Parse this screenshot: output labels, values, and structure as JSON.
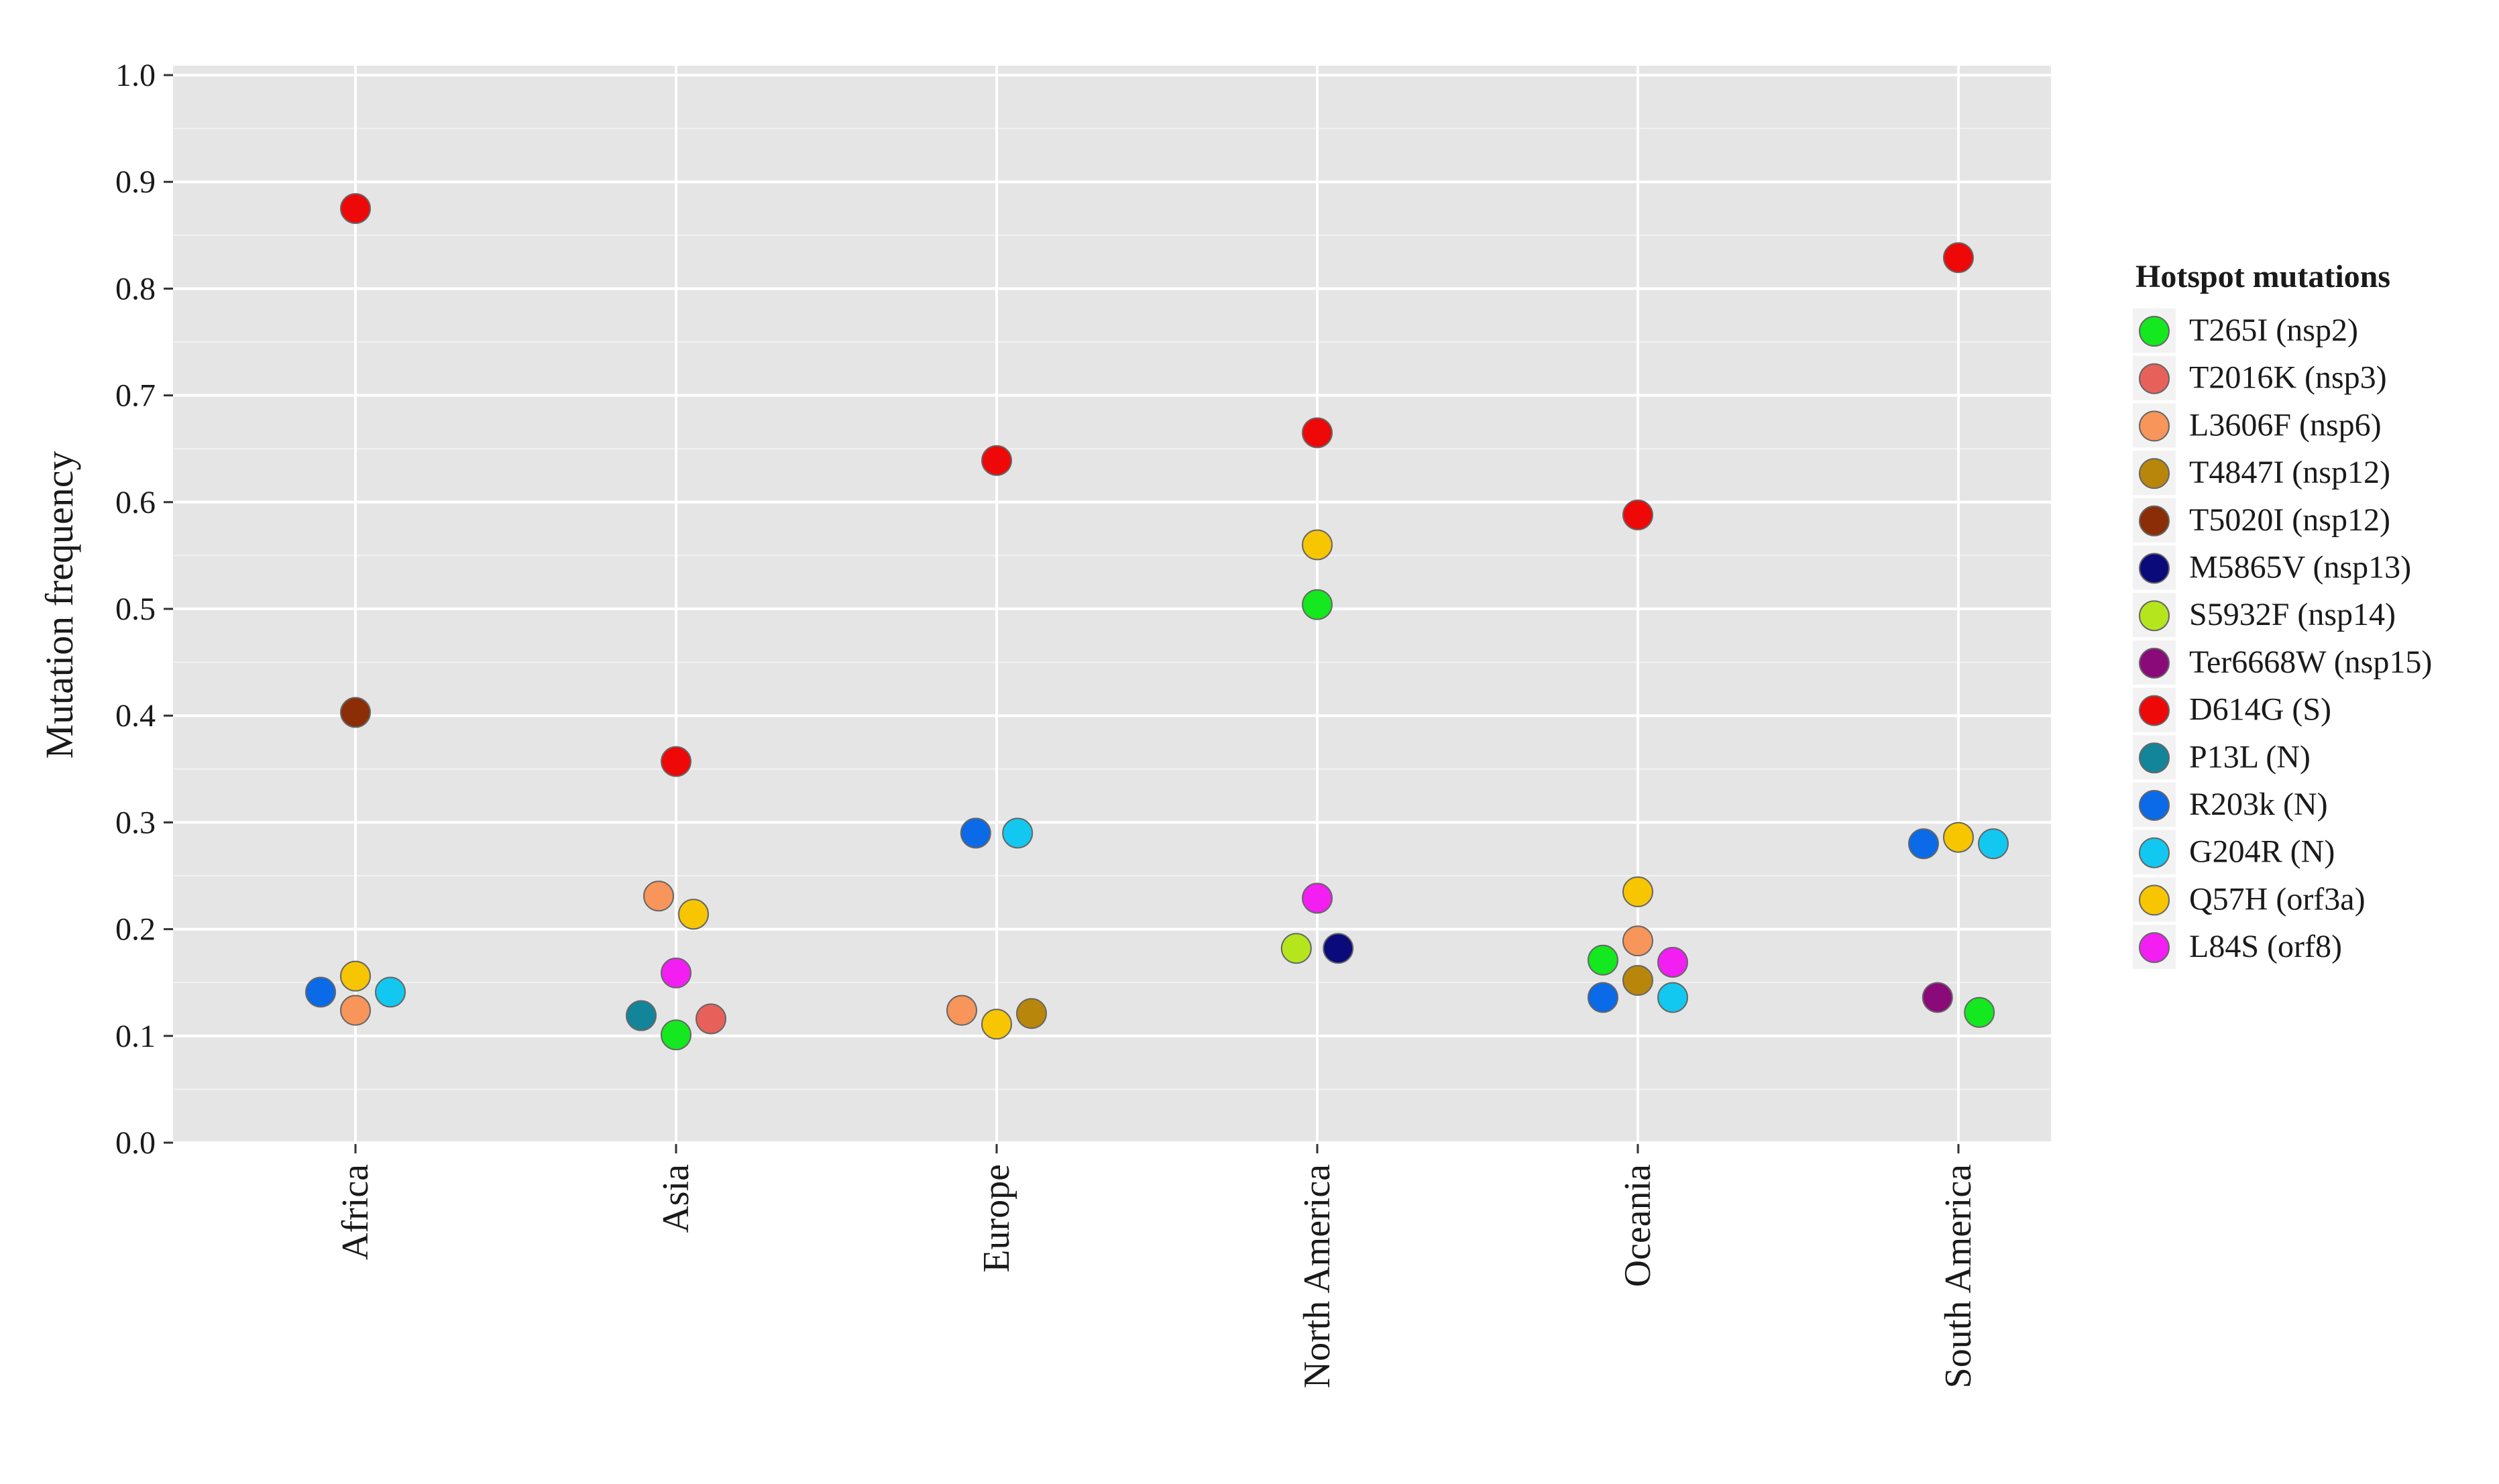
{
  "chart_data": {
    "type": "scatter",
    "title": "",
    "xlabel": "",
    "ylabel": "Mutation frequency",
    "ylim": [
      0.0,
      1.0
    ],
    "yticks": [
      "0.0",
      "0.1",
      "0.2",
      "0.3",
      "0.4",
      "0.5",
      "0.6",
      "0.7",
      "0.8",
      "0.9",
      "1.0"
    ],
    "categories": [
      "Africa",
      "Asia",
      "Europe",
      "North America",
      "Oceania",
      "South America"
    ],
    "legend": {
      "title": "Hotspot mutations",
      "position": "right",
      "entries": [
        {
          "key": "T265I",
          "label": "T265I (nsp2)",
          "color": "#14e81e"
        },
        {
          "key": "T2016K",
          "label": "T2016K (nsp3)",
          "color": "#e8605a"
        },
        {
          "key": "L3606F",
          "label": "L3606F (nsp6)",
          "color": "#f7955a"
        },
        {
          "key": "T4847I",
          "label": "T4847I (nsp12)",
          "color": "#b8860b"
        },
        {
          "key": "T5020I",
          "label": "T5020I (nsp12)",
          "color": "#8b2e08"
        },
        {
          "key": "M5865V",
          "label": "M5865V (nsp13)",
          "color": "#0a0a7a"
        },
        {
          "key": "S5932F",
          "label": "S5932F (nsp14)",
          "color": "#b5e61d"
        },
        {
          "key": "Ter6668W",
          "label": "Ter6668W (nsp15)",
          "color": "#8b0a7a"
        },
        {
          "key": "D614G",
          "label": "D614G (S)",
          "color": "#ee0808"
        },
        {
          "key": "P13L",
          "label": "P13L (N)",
          "color": "#13859a"
        },
        {
          "key": "R203k",
          "label": "R203k (N)",
          "color": "#0a6ae8"
        },
        {
          "key": "G204R",
          "label": "G204R (N)",
          "color": "#12c8f0"
        },
        {
          "key": "Q57H",
          "label": "Q57H (orf3a)",
          "color": "#f7c600"
        },
        {
          "key": "L84S",
          "label": "L84S (orf8)",
          "color": "#f21ef2"
        }
      ]
    },
    "points": [
      {
        "category": "Africa",
        "mutation": "D614G",
        "y": 0.875
      },
      {
        "category": "Africa",
        "mutation": "T5020I",
        "y": 0.403
      },
      {
        "category": "Africa",
        "mutation": "R203k",
        "y": 0.141,
        "offset": -1
      },
      {
        "category": "Africa",
        "mutation": "Q57H",
        "y": 0.156,
        "offset": 0
      },
      {
        "category": "Africa",
        "mutation": "L3606F",
        "y": 0.124,
        "offset": 0
      },
      {
        "category": "Africa",
        "mutation": "G204R",
        "y": 0.141,
        "offset": 1
      },
      {
        "category": "Asia",
        "mutation": "D614G",
        "y": 0.357
      },
      {
        "category": "Asia",
        "mutation": "L3606F",
        "y": 0.231,
        "offset": -0.5
      },
      {
        "category": "Asia",
        "mutation": "Q57H",
        "y": 0.214,
        "offset": 0.5
      },
      {
        "category": "Asia",
        "mutation": "L84S",
        "y": 0.159,
        "offset": 0
      },
      {
        "category": "Asia",
        "mutation": "P13L",
        "y": 0.119,
        "offset": -1
      },
      {
        "category": "Asia",
        "mutation": "T265I",
        "y": 0.101,
        "offset": 0
      },
      {
        "category": "Asia",
        "mutation": "T2016K",
        "y": 0.116,
        "offset": 1
      },
      {
        "category": "Europe",
        "mutation": "D614G",
        "y": 0.639
      },
      {
        "category": "Europe",
        "mutation": "R203k",
        "y": 0.29,
        "offset": -0.6
      },
      {
        "category": "Europe",
        "mutation": "G204R",
        "y": 0.29,
        "offset": 0.6
      },
      {
        "category": "Europe",
        "mutation": "L3606F",
        "y": 0.124,
        "offset": -1
      },
      {
        "category": "Europe",
        "mutation": "Q57H",
        "y": 0.111,
        "offset": 0
      },
      {
        "category": "Europe",
        "mutation": "T4847I",
        "y": 0.121,
        "offset": 1
      },
      {
        "category": "North America",
        "mutation": "D614G",
        "y": 0.665
      },
      {
        "category": "North America",
        "mutation": "Q57H",
        "y": 0.56
      },
      {
        "category": "North America",
        "mutation": "T265I",
        "y": 0.504
      },
      {
        "category": "North America",
        "mutation": "L84S",
        "y": 0.229
      },
      {
        "category": "North America",
        "mutation": "S5932F",
        "y": 0.182,
        "offset": -0.6
      },
      {
        "category": "North America",
        "mutation": "M5865V",
        "y": 0.182,
        "offset": 0.6
      },
      {
        "category": "Oceania",
        "mutation": "D614G",
        "y": 0.588
      },
      {
        "category": "Oceania",
        "mutation": "Q57H",
        "y": 0.235
      },
      {
        "category": "Oceania",
        "mutation": "L3606F",
        "y": 0.189
      },
      {
        "category": "Oceania",
        "mutation": "T265I",
        "y": 0.171,
        "offset": -1
      },
      {
        "category": "Oceania",
        "mutation": "L84S",
        "y": 0.169,
        "offset": 1
      },
      {
        "category": "Oceania",
        "mutation": "T4847I",
        "y": 0.152,
        "offset": 0
      },
      {
        "category": "Oceania",
        "mutation": "R203k",
        "y": 0.136,
        "offset": -1
      },
      {
        "category": "Oceania",
        "mutation": "G204R",
        "y": 0.136,
        "offset": 1
      },
      {
        "category": "South America",
        "mutation": "D614G",
        "y": 0.829
      },
      {
        "category": "South America",
        "mutation": "R203k",
        "y": 0.28,
        "offset": -1
      },
      {
        "category": "South America",
        "mutation": "Q57H",
        "y": 0.286,
        "offset": 0
      },
      {
        "category": "South America",
        "mutation": "G204R",
        "y": 0.28,
        "offset": 1
      },
      {
        "category": "South America",
        "mutation": "Ter6668W",
        "y": 0.136,
        "offset": -0.6
      },
      {
        "category": "South America",
        "mutation": "T265I",
        "y": 0.122,
        "offset": 0.6
      }
    ]
  }
}
